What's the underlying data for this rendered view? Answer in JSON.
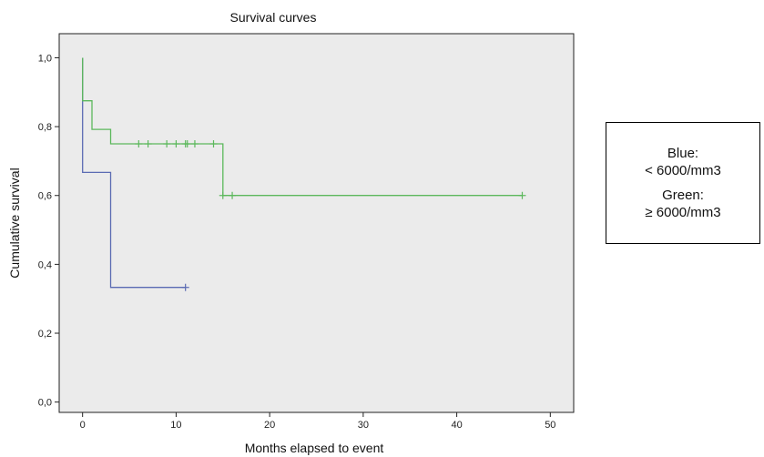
{
  "chart_data": {
    "type": "line",
    "title": "Survival curves",
    "xlabel": "Months elapsed to event",
    "ylabel": "Cumulative survival",
    "xlim": [
      -2.5,
      52.5
    ],
    "ylim": [
      -0.03,
      1.07
    ],
    "x_ticks": [
      0,
      10,
      20,
      30,
      40,
      50
    ],
    "x_tick_labels": [
      "0",
      "10",
      "20",
      "30",
      "40",
      "50"
    ],
    "y_ticks": [
      0.0,
      0.2,
      0.4,
      0.6,
      0.8,
      1.0
    ],
    "y_tick_labels": [
      "0,0",
      "0,2",
      "0,4",
      "0,6",
      "0,8",
      "1,0"
    ],
    "grid": false,
    "plot_background": "#ebebeb",
    "series": [
      {
        "color": "#5b6bb3",
        "steps": [
          [
            0,
            1.0
          ],
          [
            0,
            0.667
          ],
          [
            3,
            0.667
          ],
          [
            3,
            0.333
          ],
          [
            11,
            0.333
          ]
        ],
        "censored": [
          [
            11,
            0.333
          ]
        ]
      },
      {
        "color": "#5cb85c",
        "steps": [
          [
            0,
            1.0
          ],
          [
            0,
            0.875
          ],
          [
            1,
            0.875
          ],
          [
            1,
            0.792
          ],
          [
            3,
            0.792
          ],
          [
            3,
            0.75
          ],
          [
            15,
            0.75
          ],
          [
            15,
            0.6
          ],
          [
            47,
            0.6
          ]
        ],
        "censored": [
          [
            6,
            0.75
          ],
          [
            7,
            0.75
          ],
          [
            9,
            0.75
          ],
          [
            10,
            0.75
          ],
          [
            11,
            0.75
          ],
          [
            11.2,
            0.75
          ],
          [
            12,
            0.75
          ],
          [
            14,
            0.75
          ],
          [
            15,
            0.6
          ],
          [
            16,
            0.6
          ],
          [
            47,
            0.6
          ]
        ]
      }
    ]
  },
  "legend": {
    "blue_label": "Blue:",
    "blue_value": "< 6000/mm3",
    "green_label": "Green:",
    "green_value": "≥ 6000/mm3"
  }
}
